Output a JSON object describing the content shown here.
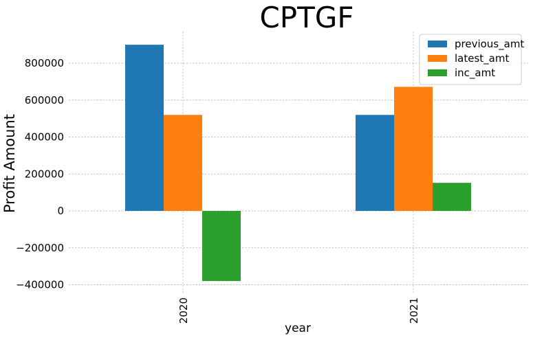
{
  "chart_data": {
    "type": "bar",
    "title": "CPTGF",
    "xlabel": "year",
    "ylabel": "Profit Amount",
    "categories": [
      "2020",
      "2021"
    ],
    "series": [
      {
        "name": "previous_amt",
        "color": "#1f77b4",
        "values": [
          900000,
          520000
        ]
      },
      {
        "name": "latest_amt",
        "color": "#ff7f0e",
        "values": [
          520000,
          672000
        ]
      },
      {
        "name": "inc_amt",
        "color": "#2ca02c",
        "values": [
          -380000,
          152000
        ]
      }
    ],
    "yticks": [
      -400000,
      -200000,
      0,
      200000,
      400000,
      600000,
      800000
    ],
    "ytick_labels": [
      "−400000",
      "−200000",
      "0",
      "200000",
      "400000",
      "600000",
      "800000"
    ],
    "ylim": [
      -420000,
      970000
    ],
    "grid": true,
    "legend_position": "top-right"
  }
}
